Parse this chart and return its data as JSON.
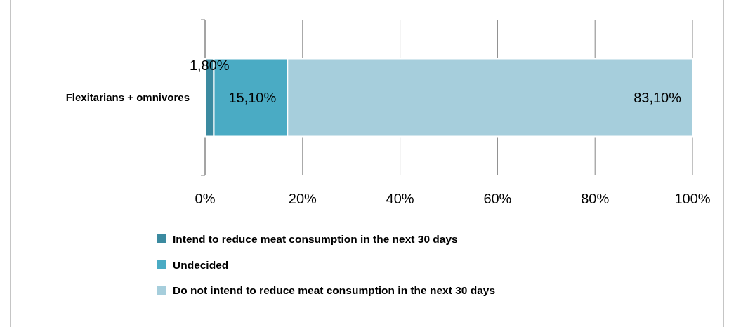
{
  "chart_data": {
    "type": "bar",
    "orientation": "horizontal",
    "stacked": true,
    "categories": [
      "Flexitarians + omnivores"
    ],
    "series": [
      {
        "name": "Intend to reduce meat consumption in the next 30 days",
        "color": "#3b8aa0",
        "values": [
          1.8
        ],
        "value_labels": [
          "1,80%"
        ]
      },
      {
        "name": "Undecided",
        "color": "#4aabc4",
        "values": [
          15.1
        ],
        "value_labels": [
          "15,10%"
        ]
      },
      {
        "name": "Do not intend to reduce meat consumption in the next 30 days",
        "color": "#a6cedc",
        "values": [
          83.1
        ],
        "value_labels": [
          "83,10%"
        ]
      }
    ],
    "xlim": [
      0,
      100
    ],
    "xticks": [
      {
        "value": 0,
        "label": "0%"
      },
      {
        "value": 20,
        "label": "20%"
      },
      {
        "value": 40,
        "label": "40%"
      },
      {
        "value": 60,
        "label": "60%"
      },
      {
        "value": 80,
        "label": "80%"
      },
      {
        "value": 100,
        "label": "100%"
      }
    ],
    "grid": "x",
    "legend": "bottom"
  }
}
